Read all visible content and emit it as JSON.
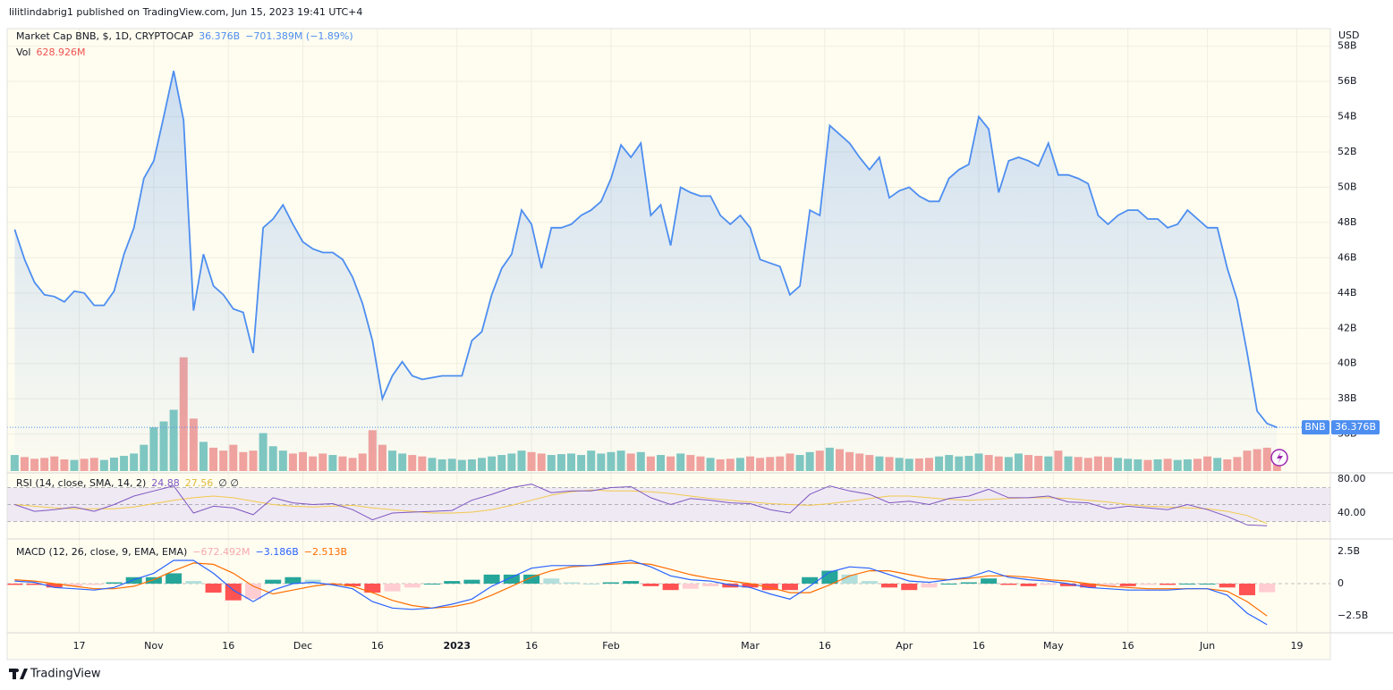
{
  "chart_data": {
    "type": "line",
    "publisher": "lilitlindabrig1 published on TradingView.com, Jun 15, 2023 19:41 UTC+4",
    "currency": "USD",
    "title": "Market Cap BNB, $, 1D, CRYPTOCAP",
    "header_change": "−701.389M (−1.89%)",
    "price_label": "36.376B",
    "brand": "TradingView",
    "grid": true,
    "xlim": [
      -0.752,
      132.37
    ],
    "xticks": [
      {
        "value": 6.5,
        "label": "17"
      },
      {
        "value": 14,
        "label": "Nov"
      },
      {
        "value": 21.5,
        "label": "16"
      },
      {
        "value": 29,
        "label": "Dec"
      },
      {
        "value": 36.5,
        "label": "16"
      },
      {
        "value": 44.5,
        "label": "2023"
      },
      {
        "value": 52,
        "label": "16"
      },
      {
        "value": 60,
        "label": "Feb"
      },
      {
        "value": 74,
        "label": "Mar"
      },
      {
        "value": 81.5,
        "label": "16"
      },
      {
        "value": 89.5,
        "label": "Apr"
      },
      {
        "value": 97,
        "label": "16"
      },
      {
        "value": 104.5,
        "label": "May"
      },
      {
        "value": 112,
        "label": "16"
      },
      {
        "value": 120,
        "label": "Jun"
      },
      {
        "value": 129,
        "label": "19"
      }
    ],
    "ylim": [
      33.9,
      59.0
    ],
    "yticks": [
      {
        "value": 36,
        "label": "36B"
      },
      {
        "value": 38,
        "label": "38B"
      },
      {
        "value": 40,
        "label": "40B"
      },
      {
        "value": 42,
        "label": "42B"
      },
      {
        "value": 44,
        "label": "44B"
      },
      {
        "value": 46,
        "label": "46B"
      },
      {
        "value": 48,
        "label": "48B"
      },
      {
        "value": 50,
        "label": "50B"
      },
      {
        "value": 52,
        "label": "52B"
      },
      {
        "value": 54,
        "label": "54B"
      },
      {
        "value": 56,
        "label": "56B"
      },
      {
        "value": 58,
        "label": "58B"
      }
    ],
    "series": [
      {
        "name": "BNB",
        "color": "#4d8ef0",
        "values": [
          47.6,
          45.9,
          44.6,
          43.9,
          43.8,
          43.5,
          44.1,
          44.0,
          43.3,
          43.3,
          44.1,
          46.2,
          47.7,
          50.5,
          51.5,
          54.0,
          56.6,
          53.8,
          43.0,
          46.2,
          44.4,
          43.9,
          43.1,
          42.9,
          40.6,
          47.7,
          48.2,
          49.0,
          47.9,
          46.9,
          46.5,
          46.3,
          46.3,
          45.9,
          44.9,
          43.4,
          41.3,
          38.0,
          39.3,
          40.1,
          39.3,
          39.1,
          39.2,
          39.3,
          39.3,
          39.3,
          41.3,
          41.8,
          43.9,
          45.4,
          46.2,
          48.7,
          47.9,
          45.4,
          47.7,
          47.7,
          47.9,
          48.4,
          48.7,
          49.2,
          50.5,
          52.4,
          51.7,
          52.5,
          48.4,
          49.0,
          46.7,
          50.0,
          49.7,
          49.5,
          49.5,
          48.4,
          47.9,
          48.4,
          47.7,
          45.9,
          45.7,
          45.5,
          43.9,
          44.4,
          48.7,
          48.4,
          53.5,
          53.0,
          52.5,
          51.7,
          51.0,
          51.7,
          49.4,
          49.8,
          50.0,
          49.5,
          49.2,
          49.2,
          50.5,
          51.0,
          51.3,
          54.0,
          53.3,
          49.7,
          51.5,
          51.7,
          51.5,
          51.2,
          52.5,
          50.7,
          50.7,
          50.5,
          50.2,
          48.4,
          47.9,
          48.4,
          48.7,
          48.7,
          48.2,
          48.2,
          47.7,
          47.9,
          48.7,
          48.2,
          47.7,
          47.7,
          45.4,
          43.6,
          40.6,
          37.3,
          36.6,
          36.376
        ]
      }
    ],
    "volume": {
      "name": "Vol",
      "value_label": "628.926M",
      "up_color": "#80c8c0",
      "down_color": "#f4a39c",
      "ylim": [
        0,
        4200
      ],
      "values": [
        550,
        480,
        420,
        450,
        500,
        400,
        380,
        420,
        450,
        380,
        460,
        520,
        600,
        900,
        1500,
        1700,
        2100,
        3900,
        1800,
        1000,
        800,
        700,
        900,
        650,
        700,
        1300,
        850,
        700,
        600,
        650,
        500,
        600,
        550,
        500,
        450,
        600,
        1400,
        900,
        700,
        600,
        550,
        500,
        450,
        400,
        420,
        380,
        400,
        450,
        500,
        550,
        600,
        700,
        650,
        600,
        550,
        580,
        600,
        550,
        700,
        600,
        650,
        700,
        600,
        650,
        500,
        550,
        500,
        600,
        550,
        500,
        450,
        400,
        420,
        450,
        500,
        450,
        480,
        500,
        600,
        550,
        650,
        700,
        800,
        750,
        650,
        600,
        550,
        500,
        480,
        450,
        420,
        430,
        450,
        500,
        550,
        500,
        520,
        600,
        550,
        500,
        480,
        600,
        550,
        520,
        500,
        700,
        500,
        480,
        450,
        500,
        480,
        450,
        420,
        400,
        380,
        400,
        420,
        380,
        400,
        420,
        500,
        450,
        400,
        480,
        700,
        750,
        800,
        628.926
      ]
    },
    "rsi": {
      "legend": "RSI (14, close, SMA, 14, 2)",
      "extra": "∅ ∅",
      "color": "#7e57c2",
      "values": [
        50,
        42,
        44,
        47,
        42,
        50,
        60,
        66,
        72,
        40,
        48,
        46,
        38,
        58,
        52,
        50,
        51,
        44,
        32,
        40,
        41,
        42,
        43,
        55,
        62,
        70,
        74,
        64,
        66,
        66,
        70,
        71,
        58,
        50,
        57,
        55,
        52,
        51,
        44,
        40,
        62,
        72,
        66,
        62,
        52,
        54,
        50,
        57,
        60,
        68,
        58,
        58,
        60,
        53,
        52,
        45,
        48,
        46,
        44,
        50,
        44,
        36,
        26,
        24.88
      ],
      "sma": {
        "color": "#f2c94c",
        "values": [
          50,
          48,
          46,
          45,
          45,
          45,
          47,
          51,
          55,
          58,
          60,
          58,
          54,
          50,
          48,
          47,
          48,
          49,
          46,
          44,
          42,
          40,
          40,
          41,
          44,
          49,
          55,
          61,
          65,
          67,
          66,
          66,
          65,
          63,
          60,
          57,
          55,
          53,
          51,
          50,
          49,
          51,
          54,
          57,
          60,
          60,
          58,
          56,
          55,
          56,
          57,
          58,
          58,
          57,
          55,
          53,
          50,
          48,
          47,
          46,
          45,
          42,
          37,
          27.56
        ]
      },
      "ylim": [
        12.6,
        84.2
      ],
      "yticks": [
        {
          "value": 80,
          "label": "80.00"
        },
        {
          "value": 40,
          "label": "40.00"
        }
      ],
      "levels": [
        70,
        50,
        30
      ],
      "band_color": "#efe9f3"
    },
    "macd": {
      "legend": "MACD (12, 26, close, 9, EMA, EMA)",
      "ylim": [
        -3.82,
        3.33
      ],
      "yticks": [
        {
          "value": 2.5,
          "label": "2.5B"
        },
        0,
        {
          "value": -2.5,
          "label": "−2.5B"
        }
      ],
      "histogram": {
        "last_label": "−672.492M",
        "colors": [
          "#26a69a",
          "#b2dfdb",
          "#ff5252",
          "#ffcdd2"
        ],
        "values": [
          -0.1,
          -0.1,
          -0.3,
          -0.2,
          -0.1,
          0.1,
          0.5,
          0.5,
          0.8,
          0.2,
          -0.7,
          -1.3,
          -1.2,
          0.3,
          0.5,
          0.3,
          -0.1,
          -0.2,
          -0.7,
          -0.6,
          -0.3,
          0,
          0.2,
          0.3,
          0.7,
          0.7,
          0.7,
          0.4,
          0.1,
          0,
          0.1,
          0.2,
          -0.2,
          -0.5,
          -0.4,
          -0.2,
          -0.3,
          -0.3,
          -0.5,
          -0.5,
          0.5,
          1.0,
          0.7,
          0.2,
          -0.3,
          -0.5,
          -0.3,
          0,
          0.1,
          0.4,
          -0.1,
          -0.2,
          -0.1,
          -0.2,
          -0.3,
          -0.2,
          -0.2,
          -0.1,
          -0.1,
          0,
          0,
          -0.3,
          -0.9,
          -0.672
        ]
      },
      "macd": {
        "last_label": "−3.186B",
        "color": "#2962ff",
        "values": [
          0.2,
          0.1,
          -0.3,
          -0.4,
          -0.5,
          -0.3,
          0.3,
          0.8,
          1.8,
          1.8,
          0.8,
          -0.5,
          -1.4,
          -0.5,
          0,
          0.1,
          -0.1,
          -0.4,
          -1.4,
          -1.9,
          -2.0,
          -1.9,
          -1.6,
          -1.2,
          -0.2,
          0.5,
          1.2,
          1.4,
          1.4,
          1.4,
          1.6,
          1.8,
          1.3,
          0.6,
          0.3,
          0.2,
          -0.1,
          -0.3,
          -0.8,
          -1.2,
          -0.2,
          0.9,
          1.3,
          1.2,
          0.7,
          0.2,
          0.1,
          0.3,
          0.5,
          1.0,
          0.5,
          0.3,
          0.2,
          0,
          -0.3,
          -0.4,
          -0.5,
          -0.5,
          -0.5,
          -0.4,
          -0.4,
          -0.9,
          -2.3,
          -3.186
        ]
      },
      "signal": {
        "last_label": "−2.513B",
        "color": "#ff6d00",
        "values": [
          0.3,
          0.2,
          0,
          -0.2,
          -0.4,
          -0.4,
          -0.2,
          0.3,
          1.0,
          1.6,
          1.5,
          0.8,
          -0.2,
          -0.8,
          -0.5,
          -0.2,
          0,
          -0.2,
          -0.7,
          -1.3,
          -1.7,
          -1.9,
          -1.8,
          -1.5,
          -0.9,
          -0.2,
          0.5,
          1.0,
          1.3,
          1.4,
          1.5,
          1.6,
          1.5,
          1.1,
          0.7,
          0.4,
          0.2,
          0,
          -0.3,
          -0.7,
          -0.7,
          -0.1,
          0.6,
          1.0,
          1.0,
          0.7,
          0.4,
          0.3,
          0.4,
          0.6,
          0.6,
          0.5,
          0.3,
          0.2,
          0,
          -0.2,
          -0.3,
          -0.4,
          -0.4,
          -0.4,
          -0.4,
          -0.6,
          -1.4,
          -2.513
        ]
      }
    }
  }
}
